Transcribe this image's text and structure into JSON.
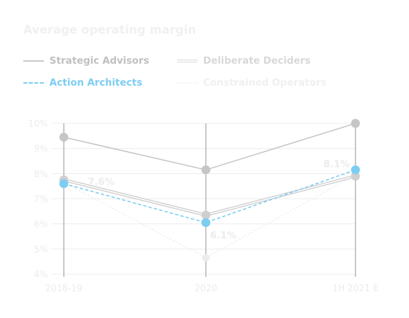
{
  "chart_data": {
    "type": "line",
    "title": "Average operating margin",
    "categories": [
      "2018-19",
      "2020",
      "1H 2021 E"
    ],
    "ylim": [
      4,
      10
    ],
    "y_ticks": [
      "4%",
      "5%",
      "6%",
      "7%",
      "8%",
      "9%",
      "10%"
    ],
    "y_tick_values": [
      4,
      5,
      6,
      7,
      8,
      9,
      10
    ],
    "grid": true,
    "legend_position": "top",
    "series": [
      {
        "name": "Strategic Advisors",
        "values": [
          9.45,
          8.15,
          10.0
        ],
        "color": "#c6c6c6",
        "style": "solid"
      },
      {
        "name": "Deliberate Deciders",
        "values": [
          7.75,
          6.35,
          7.9
        ],
        "color": "#cfcfcf",
        "style": "double"
      },
      {
        "name": "Action Architects",
        "values": [
          7.6,
          6.05,
          8.15
        ],
        "color": "#7dcdf2",
        "style": "dashed"
      },
      {
        "name": "Constrained Operators",
        "values": [
          7.65,
          4.65,
          7.95
        ],
        "color": "#ececec",
        "style": "dotted"
      }
    ],
    "data_labels": [
      {
        "text": "7.6%",
        "category": "2018-19",
        "value": 7.6
      },
      {
        "text": "6.1%",
        "category": "2020",
        "value": 6.05
      },
      {
        "text": "8.1%",
        "category": "1H 2021 E",
        "value": 8.15
      }
    ]
  }
}
